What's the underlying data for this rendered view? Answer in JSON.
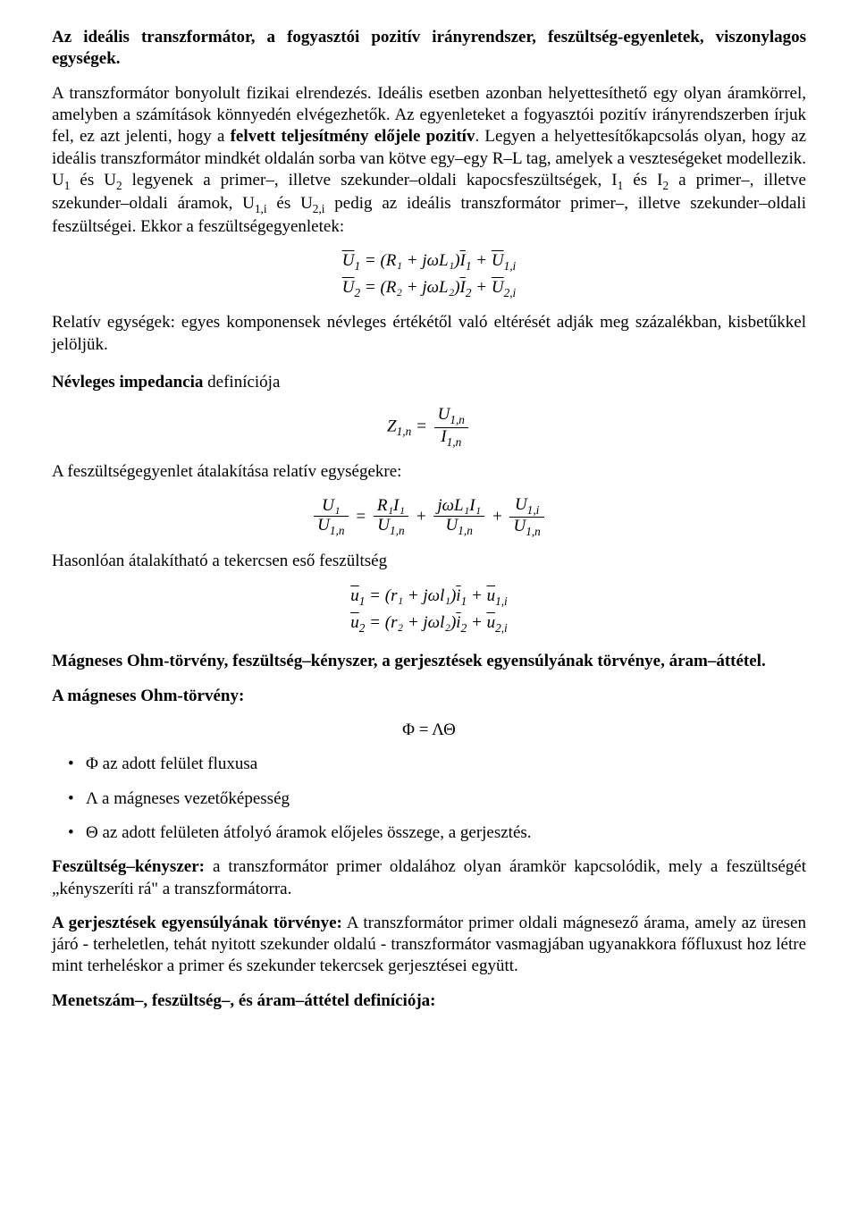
{
  "title1": "Az ideális transzformátor, a fogyasztói pozitív irányrendszer, feszültség-egyenletek, viszonylagos egységek.",
  "para1a": "A transzformátor bonyolult fizikai elrendezés. Ideális esetben azonban helyettesíthető egy olyan áramkörrel, amelyben a számítások könnyedén elvégezhetők. Az egyenleteket a fogyasztói pozitív irányrendszerben írjuk fel, ez azt jelenti, hogy a ",
  "para1b": "felvett teljesítmény előjele pozitív",
  "para1c": ". Legyen a helyettesítőkapcsolás olyan, hogy az ideális transzformátor mindkét oldalán sorba van kötve egy–egy R–L tag, amelyek a veszteségeket modellezik. U",
  "para1d": " és U",
  "para1e": " legyenek a primer–, illetve szekunder–oldali kapocsfeszültségek, I",
  "para1f": " és I",
  "para1g": " a primer–, illetve szekunder–oldali áramok, U",
  "para1h": " és U",
  "para1i": " pedig az ideális transzformátor primer–, illetve szekunder–oldali feszültségei. Ekkor a feszültségegyenletek:",
  "s1": "1",
  "s2": "2",
  "s1i": "1,i",
  "s2i": "2,i",
  "eq1a_lhs_sym": "U",
  "eq1a_lhs_sub": "1",
  "eq1a_rhs": " = (R₁ + jωL₁)",
  "eq1a_I": "I",
  "eq1a_Isub": "1",
  "eq1a_plus": " + ",
  "eq1a_U2": "U",
  "eq1a_U2sub": "1,i",
  "eq1b_lhs_sym": "U",
  "eq1b_lhs_sub": "2",
  "eq1b_rhs": " = (R₂ + jωL₂)",
  "eq1b_I": "I",
  "eq1b_Isub": "2",
  "eq1b_U2": "U",
  "eq1b_U2sub": "2,i",
  "para2": "Relatív egységek: egyes komponensek névleges értékétől való eltérését adják meg százalékban, kisbetűkkel jelöljük.",
  "para3_bold": "Névleges impedancia",
  "para3_rest": " definíciója",
  "eq2_lhs": "Z",
  "eq2_lhs_sub": "1,n",
  "eq2_eq": " = ",
  "eq2_num": "U",
  "eq2_num_sub": "1,n",
  "eq2_den": "I",
  "eq2_den_sub": "1,n",
  "para4": "A feszültségegyenlet átalakítása relatív egységekre:",
  "eq3_t1n": "U₁",
  "eq3_t1d": "U",
  "eq3_t1d_sub": "1,n",
  "eq3_eq": " = ",
  "eq3_t2n": "R₁I₁",
  "eq3_t2d": "U",
  "eq3_t2d_sub": "1,n",
  "eq3_plus": " + ",
  "eq3_t3n": "jωL₁I₁",
  "eq3_t3d": "U",
  "eq3_t3d_sub": "1,n",
  "eq3_t4n": "U",
  "eq3_t4n_sub": "1,i",
  "eq3_t4d": "U",
  "eq3_t4d_sub": "1,n",
  "para5": "Hasonlóan átalakítható a tekercsen eső feszültség",
  "eq4a_u": "u",
  "eq4a_sub": "1",
  "eq4a_mid": " = (r₁ + jωl₁)",
  "eq4a_i": "i",
  "eq4a_isub": "1",
  "eq4a_plus": " + ",
  "eq4a_u2": "u",
  "eq4a_u2sub": "1,i",
  "eq4b_u": "u",
  "eq4b_sub": "2",
  "eq4b_mid": " = (r₂ + jωl₂)",
  "eq4b_i": "i",
  "eq4b_isub": "2",
  "eq4b_u2": "u",
  "eq4b_u2sub": "2,i",
  "title2": "Mágneses Ohm-törvény, feszültség–kényszer, a gerjesztések egyensúlyának törvénye, áram–áttétel.",
  "para6": "A mágneses Ohm-törvény:",
  "eq5": "Φ = ΛΘ",
  "bullet1": "Φ az adott felület fluxusa",
  "bullet2": "Λ a mágneses vezetőképesség",
  "bullet3": "Θ az adott felületen átfolyó áramok előjeles összege, a gerjesztés.",
  "para7_bold": "Feszültség–kényszer:",
  "para7_rest": " a transzformátor primer oldalához olyan áramkör kapcsolódik, mely a feszültségét „kényszeríti rá\" a transzformátorra.",
  "para8_bold": "A gerjesztések egyensúlyának törvénye:",
  "para8_rest": " A transzformátor primer oldali mágnesező árama, amely az üresen járó - terheletlen, tehát nyitott szekunder oldalú - transzformátor vasmagjában ugyanakkora főfluxust hoz létre mint terheléskor a primer és szekunder tekercsek gerjesztései együtt.",
  "title3": "Menetszám–, feszültség–, és áram–áttétel definíciója:"
}
